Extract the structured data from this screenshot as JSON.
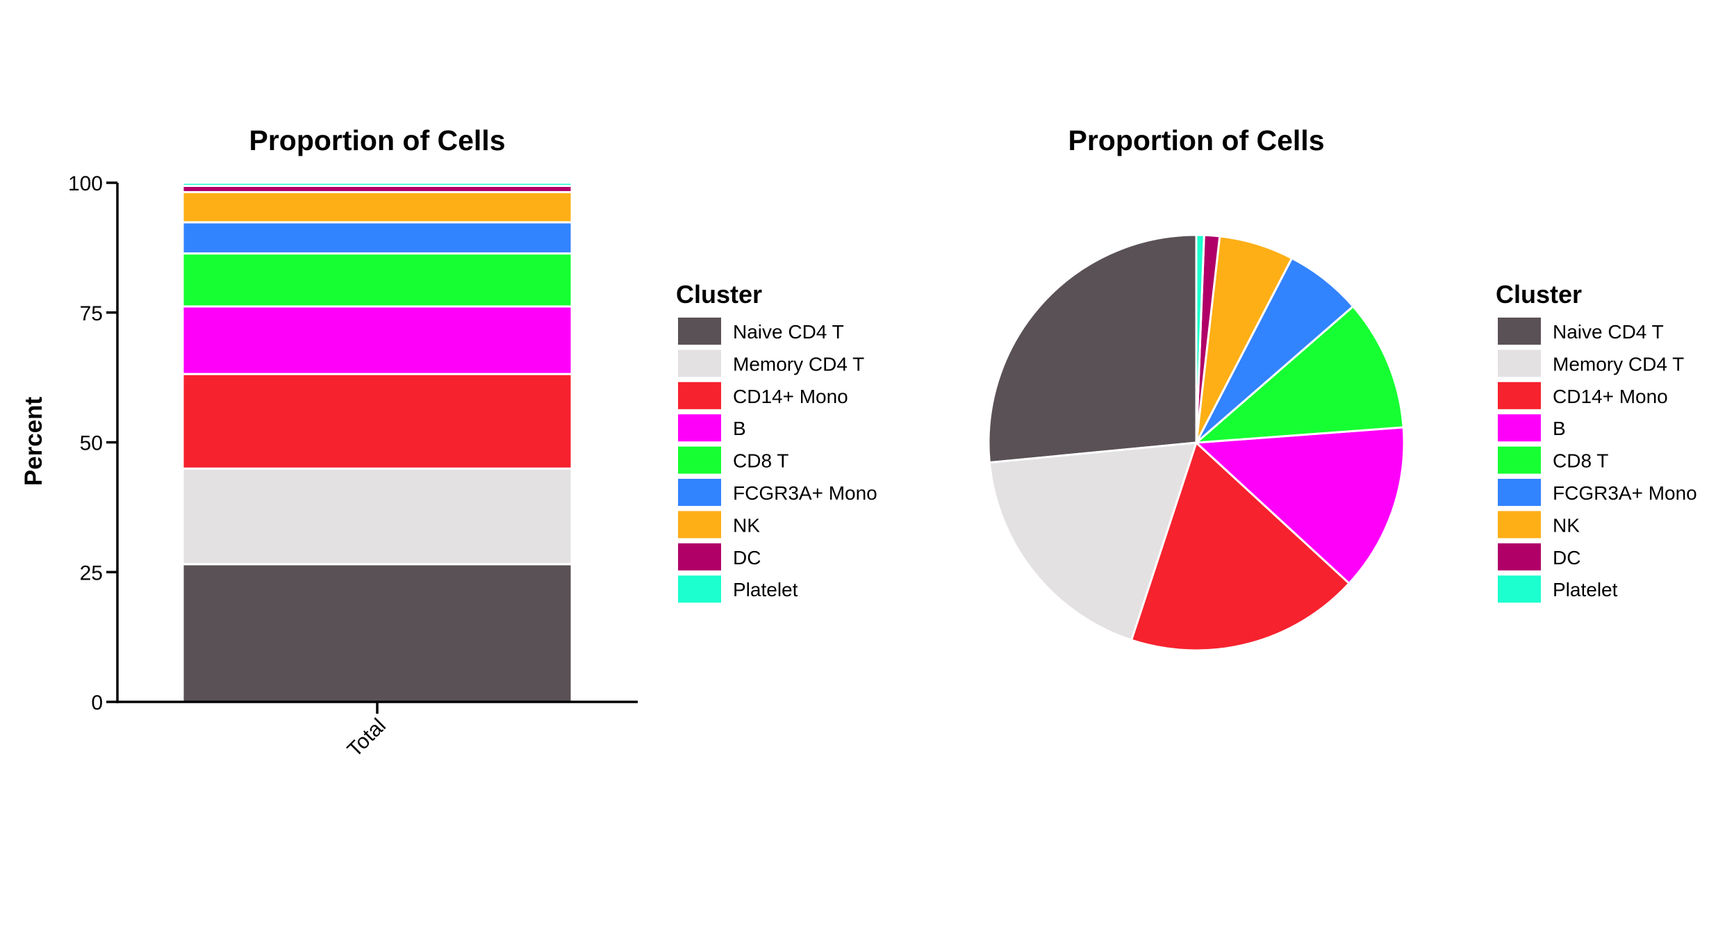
{
  "chart_data": [
    {
      "type": "bar",
      "stacked": true,
      "title": "Proportion of Cells",
      "xlabel": "",
      "ylabel": "Percent",
      "categories": [
        "Total"
      ],
      "ylim": [
        0,
        100
      ],
      "yticks": [
        "0",
        "25",
        "50",
        "75",
        "100"
      ],
      "series": [
        {
          "name": "Naive CD4 T",
          "values": [
            26.5
          ],
          "color": "#5a5156"
        },
        {
          "name": "Memory CD4 T",
          "values": [
            18.4
          ],
          "color": "#e4e1e3"
        },
        {
          "name": "CD14+ Mono",
          "values": [
            18.2
          ],
          "color": "#f6222e"
        },
        {
          "name": "B",
          "values": [
            13.0
          ],
          "color": "#fe00fa"
        },
        {
          "name": "CD8 T",
          "values": [
            10.2
          ],
          "color": "#16ff32"
        },
        {
          "name": "FCGR3A+ Mono",
          "values": [
            6.0
          ],
          "color": "#3283fe"
        },
        {
          "name": "NK",
          "values": [
            5.8
          ],
          "color": "#feaf16"
        },
        {
          "name": "DC",
          "values": [
            1.2
          ],
          "color": "#b00068"
        },
        {
          "name": "Platelet",
          "values": [
            0.6
          ],
          "color": "#1cffce"
        }
      ],
      "legend": {
        "title": "Cluster",
        "position": "right"
      },
      "grid": false
    },
    {
      "type": "pie",
      "title": "Proportion of Cells",
      "labels": [
        "Naive CD4 T",
        "Memory CD4 T",
        "CD14+ Mono",
        "B",
        "CD8 T",
        "FCGR3A+ Mono",
        "NK",
        "DC",
        "Platelet"
      ],
      "values": [
        26.5,
        18.4,
        18.2,
        13.0,
        10.2,
        6.0,
        5.8,
        1.2,
        0.6
      ],
      "colors": [
        "#5a5156",
        "#e4e1e3",
        "#f6222e",
        "#fe00fa",
        "#16ff32",
        "#3283fe",
        "#feaf16",
        "#b00068",
        "#1cffce"
      ],
      "legend": {
        "title": "Cluster",
        "position": "right"
      }
    }
  ]
}
